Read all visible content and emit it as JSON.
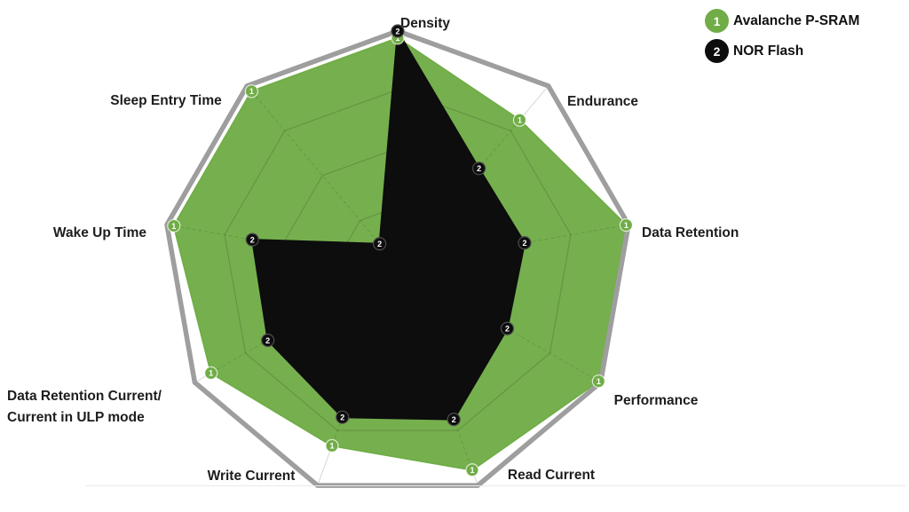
{
  "chart_data": {
    "type": "radar",
    "style": "filled-radar-with-markers",
    "axes": [
      {
        "label": "Density"
      },
      {
        "label": "Endurance"
      },
      {
        "label": "Data Retention"
      },
      {
        "label": "Performance"
      },
      {
        "label": "Read Current"
      },
      {
        "label": "Write Current"
      },
      {
        "label": "Data Retention Current/",
        "label2": "Current in ULP mode"
      },
      {
        "label": "Wake Up Time"
      },
      {
        "label": "Sleep Entry Time"
      }
    ],
    "scale": {
      "min": 0,
      "max": 5,
      "grid_rings": [
        1.25,
        2.5,
        3.75
      ]
    },
    "series": [
      {
        "name": "Avalanche P-SRAM",
        "marker": "1",
        "color": "#70AD47",
        "values": [
          4.85,
          4.05,
          4.95,
          4.95,
          4.65,
          4.1,
          4.6,
          4.85,
          4.85
        ]
      },
      {
        "name": "NOR Flash",
        "marker": "2",
        "color": "#0D0D0D",
        "values": [
          5.0,
          2.7,
          2.75,
          2.7,
          3.5,
          3.45,
          3.2,
          3.15,
          0.6
        ]
      }
    ],
    "legend_position": "top-right",
    "grid": true,
    "colors": {
      "outer_ring": "#9E9E9E",
      "gridline": "#CDCDCD",
      "gridline_over_fill": "rgba(70,90,45,0.28)",
      "spoke": "#D6D6D6"
    }
  }
}
